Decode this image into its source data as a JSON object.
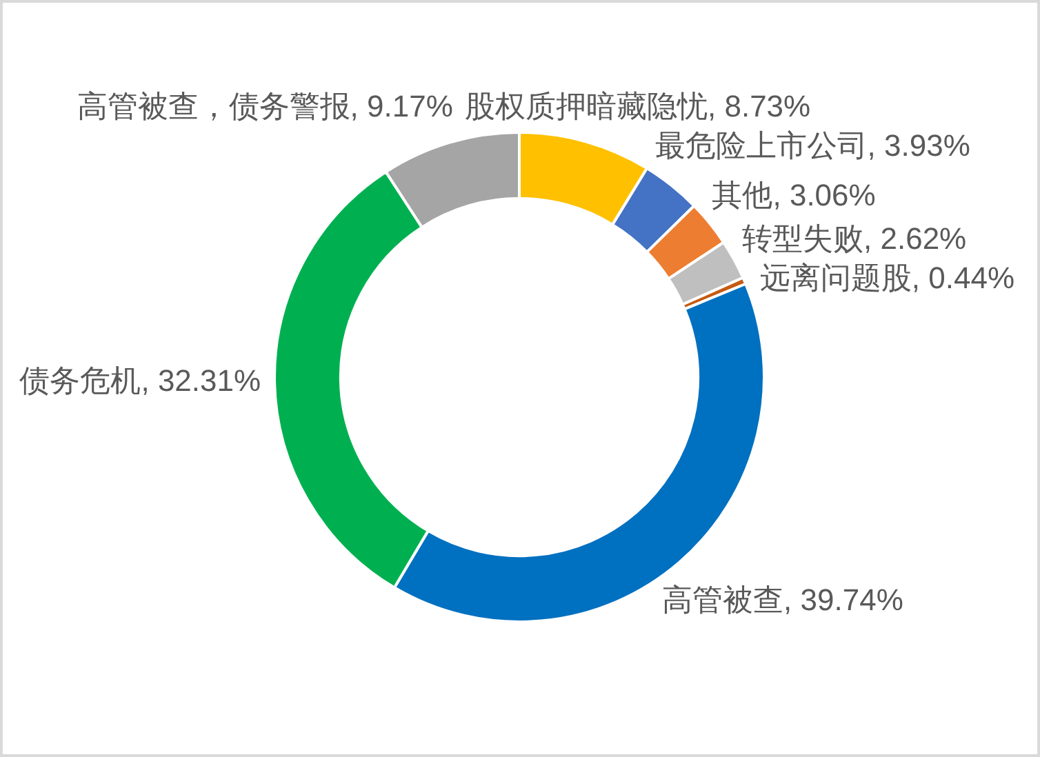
{
  "chart_data": {
    "type": "donut",
    "categories": [
      "股权质押暗藏隐忧",
      "最危险上市公司",
      "其他",
      "转型失败",
      "远离问题股",
      "高管被查",
      "债务危机",
      "高管被查，债务警报"
    ],
    "values": [
      8.73,
      3.93,
      3.06,
      2.62,
      0.44,
      39.74,
      32.31,
      9.17
    ],
    "value_labels": [
      "8.73%",
      "3.93%",
      "3.06%",
      "2.62%",
      "0.44%",
      "39.74%",
      "32.31%",
      "9.17%"
    ],
    "colors": [
      "#ffc000",
      "#4472c4",
      "#ed7d31",
      "#bfbfbf",
      "#c55a11",
      "#0070c0",
      "#00b050",
      "#a5a5a5"
    ]
  }
}
